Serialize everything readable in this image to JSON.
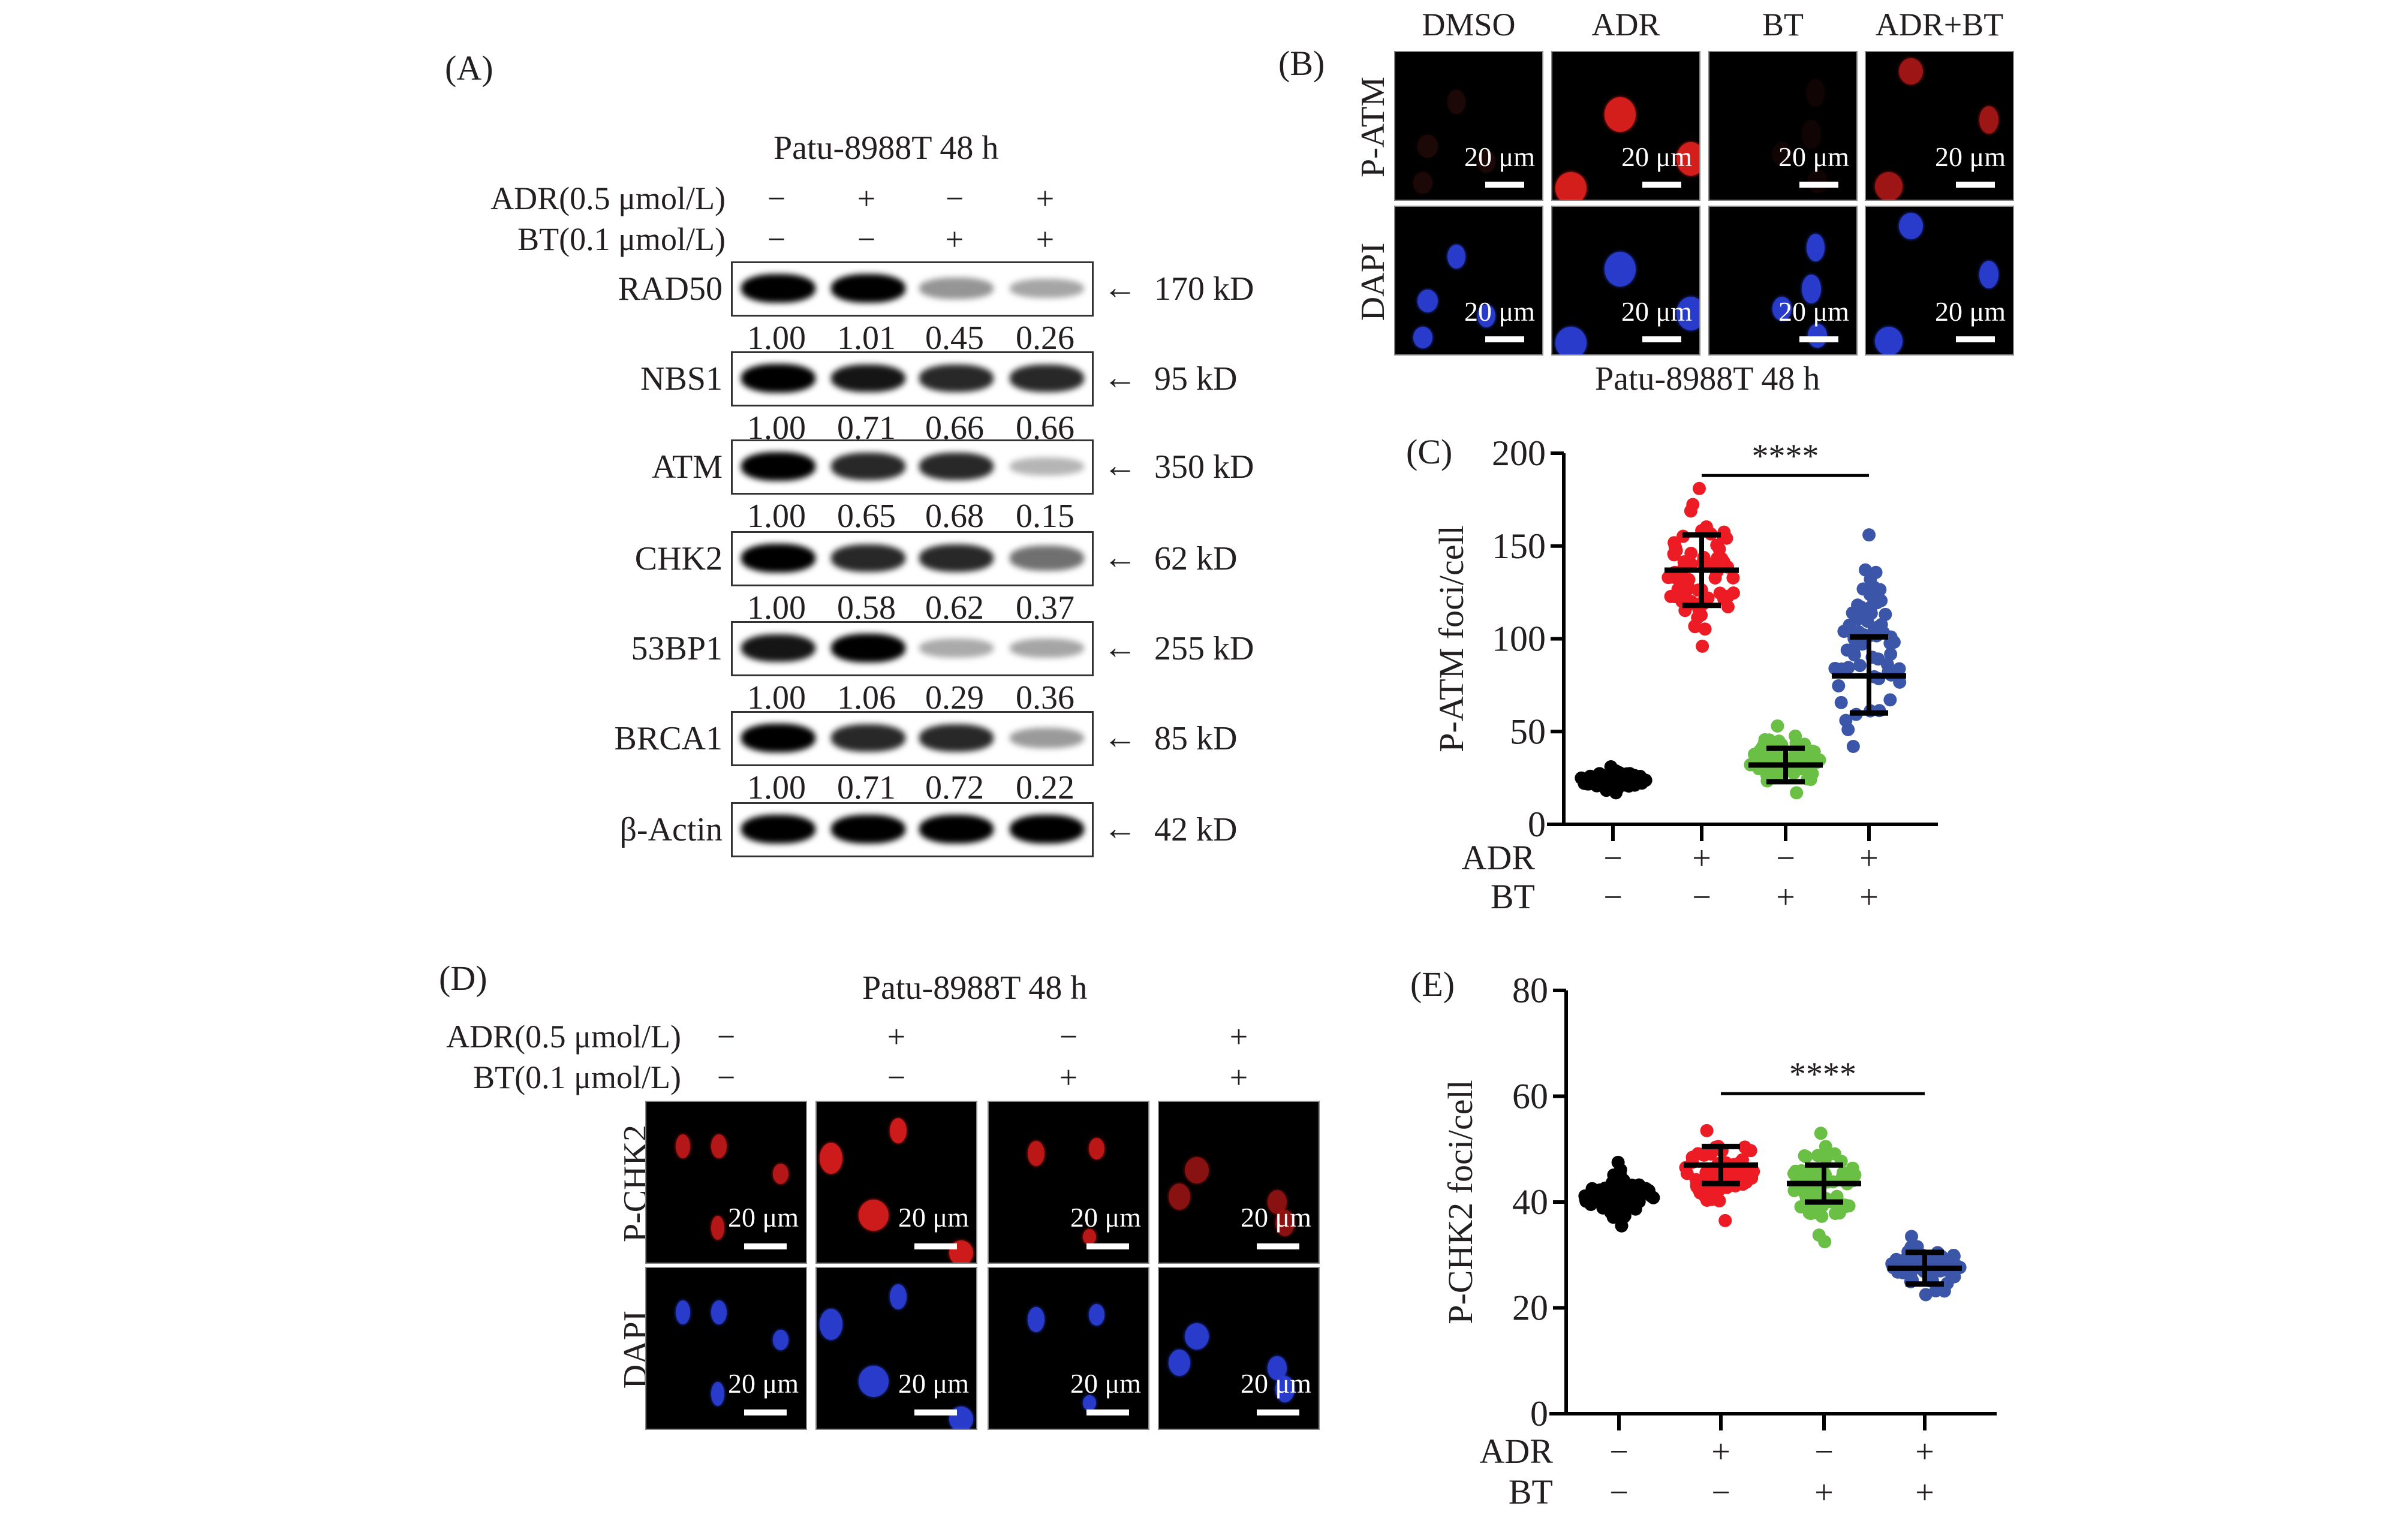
{
  "figure": {
    "panels": [
      "(A)",
      "(B)",
      "(C)",
      "(D)",
      "(E)"
    ]
  },
  "panelA": {
    "label": "(A)",
    "title": "Patu-8988T 48 h",
    "conditions": [
      {
        "label": "ADR(0.5 μmol/L)",
        "signs": [
          "−",
          "+",
          "−",
          "+"
        ]
      },
      {
        "label": "BT(0.1 μmol/L)",
        "signs": [
          "−",
          "−",
          "+",
          "+"
        ]
      }
    ],
    "blots": [
      {
        "protein": "RAD50",
        "kd": "170 kD",
        "quant": [
          "1.00",
          "1.01",
          "0.45",
          "0.26"
        ],
        "intensity": [
          1.0,
          1.0,
          0.45,
          0.3
        ]
      },
      {
        "protein": "NBS1",
        "kd": "95 kD",
        "quant": [
          "1.00",
          "0.71",
          "0.66",
          "0.66"
        ],
        "intensity": [
          1.0,
          0.95,
          0.9,
          0.9
        ]
      },
      {
        "protein": "ATM",
        "kd": "350 kD",
        "quant": [
          "1.00",
          "0.65",
          "0.68",
          "0.15"
        ],
        "intensity": [
          1.0,
          0.9,
          0.9,
          0.15
        ]
      },
      {
        "protein": "CHK2",
        "kd": "62 kD",
        "quant": [
          "1.00",
          "0.58",
          "0.62",
          "0.37"
        ],
        "intensity": [
          1.0,
          0.9,
          0.9,
          0.7
        ]
      },
      {
        "protein": "53BP1",
        "kd": "255 kD",
        "quant": [
          "1.00",
          "1.06",
          "0.29",
          "0.36"
        ],
        "intensity": [
          0.95,
          1.0,
          0.25,
          0.3
        ]
      },
      {
        "protein": "BRCA1",
        "kd": "85 kD",
        "quant": [
          "1.00",
          "0.71",
          "0.72",
          "0.22"
        ],
        "intensity": [
          1.0,
          0.9,
          0.9,
          0.4
        ]
      },
      {
        "protein": "β-Actin",
        "kd": "42 kD",
        "quant": null,
        "intensity": [
          1.0,
          1.0,
          1.0,
          1.0
        ]
      }
    ],
    "arrow": "←"
  },
  "panelB": {
    "label": "(B)",
    "columns": [
      "DMSO",
      "ADR",
      "BT",
      "ADR+BT"
    ],
    "rows": [
      {
        "stain": "P-ATM",
        "color": "#e0201e"
      },
      {
        "stain": "DAPI",
        "color": "#2b3fd6"
      }
    ],
    "scale_bar": "20 μm",
    "caption": "Patu-8988T 48 h"
  },
  "panelD": {
    "label": "(D)",
    "title": "Patu-8988T 48 h",
    "conditions": [
      {
        "label": "ADR(0.5 μmol/L)",
        "signs": [
          "−",
          "+",
          "−",
          "+"
        ]
      },
      {
        "label": "BT(0.1 μmol/L)",
        "signs": [
          "−",
          "−",
          "+",
          "+"
        ]
      }
    ],
    "rows": [
      {
        "stain": "P-CHK2",
        "color": "#d0201e"
      },
      {
        "stain": "DAPI",
        "color": "#2b3fd6"
      }
    ],
    "scale_bar": "20 μm"
  },
  "chart_data": [
    {
      "panel": "(C)",
      "type": "scatter",
      "title": "",
      "ylabel": "P-ATM foci/cell",
      "xlabel": "",
      "ylim": [
        0,
        200
      ],
      "yticks": [
        0,
        50,
        100,
        150,
        200
      ],
      "grid": false,
      "row_labels": [
        "ADR",
        "BT"
      ],
      "categories": [
        {
          "ADR": "−",
          "BT": "−"
        },
        {
          "ADR": "+",
          "BT": "−"
        },
        {
          "ADR": "−",
          "BT": "+"
        },
        {
          "ADR": "+",
          "BT": "+"
        }
      ],
      "series": [
        {
          "name": "DMSO",
          "color": "#000000",
          "mean": 24,
          "sd_low": 22,
          "sd_high": 26,
          "min": 17,
          "max": 31
        },
        {
          "name": "ADR",
          "color": "#ed1c24",
          "mean": 137,
          "sd_low": 118,
          "sd_high": 156,
          "min": 96,
          "max": 181
        },
        {
          "name": "BT",
          "color": "#6abf45",
          "mean": 32,
          "sd_low": 23,
          "sd_high": 41,
          "min": 17,
          "max": 53
        },
        {
          "name": "ADR+BT",
          "color": "#3b56a8",
          "mean": 80,
          "sd_low": 60,
          "sd_high": 101,
          "min": 42,
          "max": 156
        }
      ],
      "significance": {
        "from": 1,
        "to": 3,
        "label": "****",
        "y": 188
      }
    },
    {
      "panel": "(E)",
      "type": "scatter",
      "title": "",
      "ylabel": "P-CHK2 foci/cell",
      "xlabel": "",
      "ylim": [
        0,
        80
      ],
      "yticks": [
        0,
        20,
        40,
        60,
        80
      ],
      "grid": false,
      "row_labels": [
        "ADR",
        "BT"
      ],
      "categories": [
        {
          "ADR": "−",
          "BT": "−"
        },
        {
          "ADR": "+",
          "BT": "−"
        },
        {
          "ADR": "−",
          "BT": "+"
        },
        {
          "ADR": "+",
          "BT": "+"
        }
      ],
      "series": [
        {
          "name": "DMSO",
          "color": "#000000",
          "mean": 41,
          "sd_low": 39.5,
          "sd_high": 42.5,
          "min": 35.5,
          "max": 47.5
        },
        {
          "name": "ADR",
          "color": "#ed1c24",
          "mean": 47,
          "sd_low": 43.5,
          "sd_high": 50.5,
          "min": 36.5,
          "max": 53.5
        },
        {
          "name": "BT",
          "color": "#6abf45",
          "mean": 43.5,
          "sd_low": 40,
          "sd_high": 47,
          "min": 32.5,
          "max": 53
        },
        {
          "name": "ADR+BT",
          "color": "#3b56a8",
          "mean": 27.5,
          "sd_low": 24.5,
          "sd_high": 30.5,
          "min": 22.5,
          "max": 33.5
        }
      ],
      "significance": {
        "from": 1,
        "to": 3,
        "label": "****",
        "y": 60.5
      }
    }
  ]
}
